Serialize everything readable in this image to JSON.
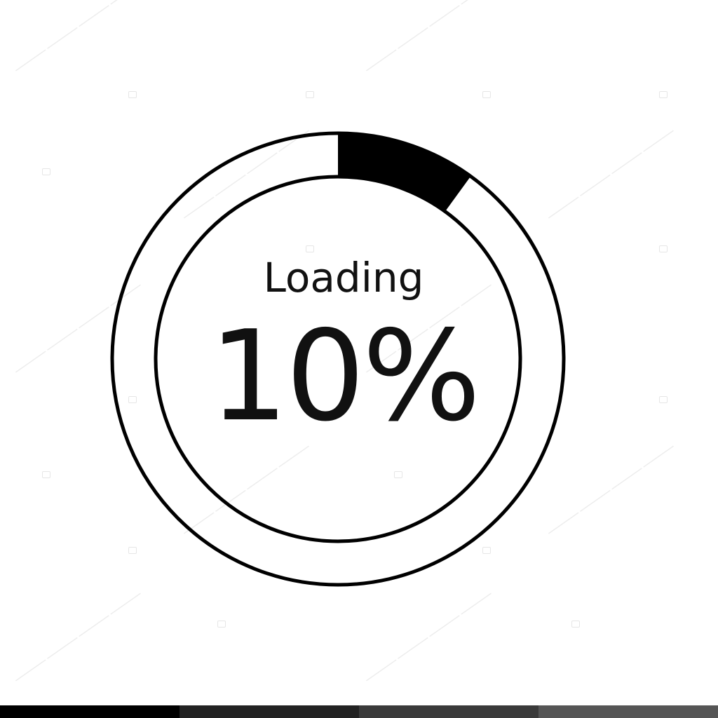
{
  "loader": {
    "label": "Loading",
    "percent_text": "10%",
    "progress": 0.1
  },
  "icons": {
    "progress_ring": "progress-ring-icon",
    "watermark_camera": "camera-icon"
  },
  "colors": {
    "background": "#ffffff",
    "stroke": "#000000",
    "progress_fill": "#000000",
    "text": "#111111",
    "bottom_bar": [
      "#000000",
      "#222222",
      "#3a3a3a",
      "#555555"
    ]
  }
}
